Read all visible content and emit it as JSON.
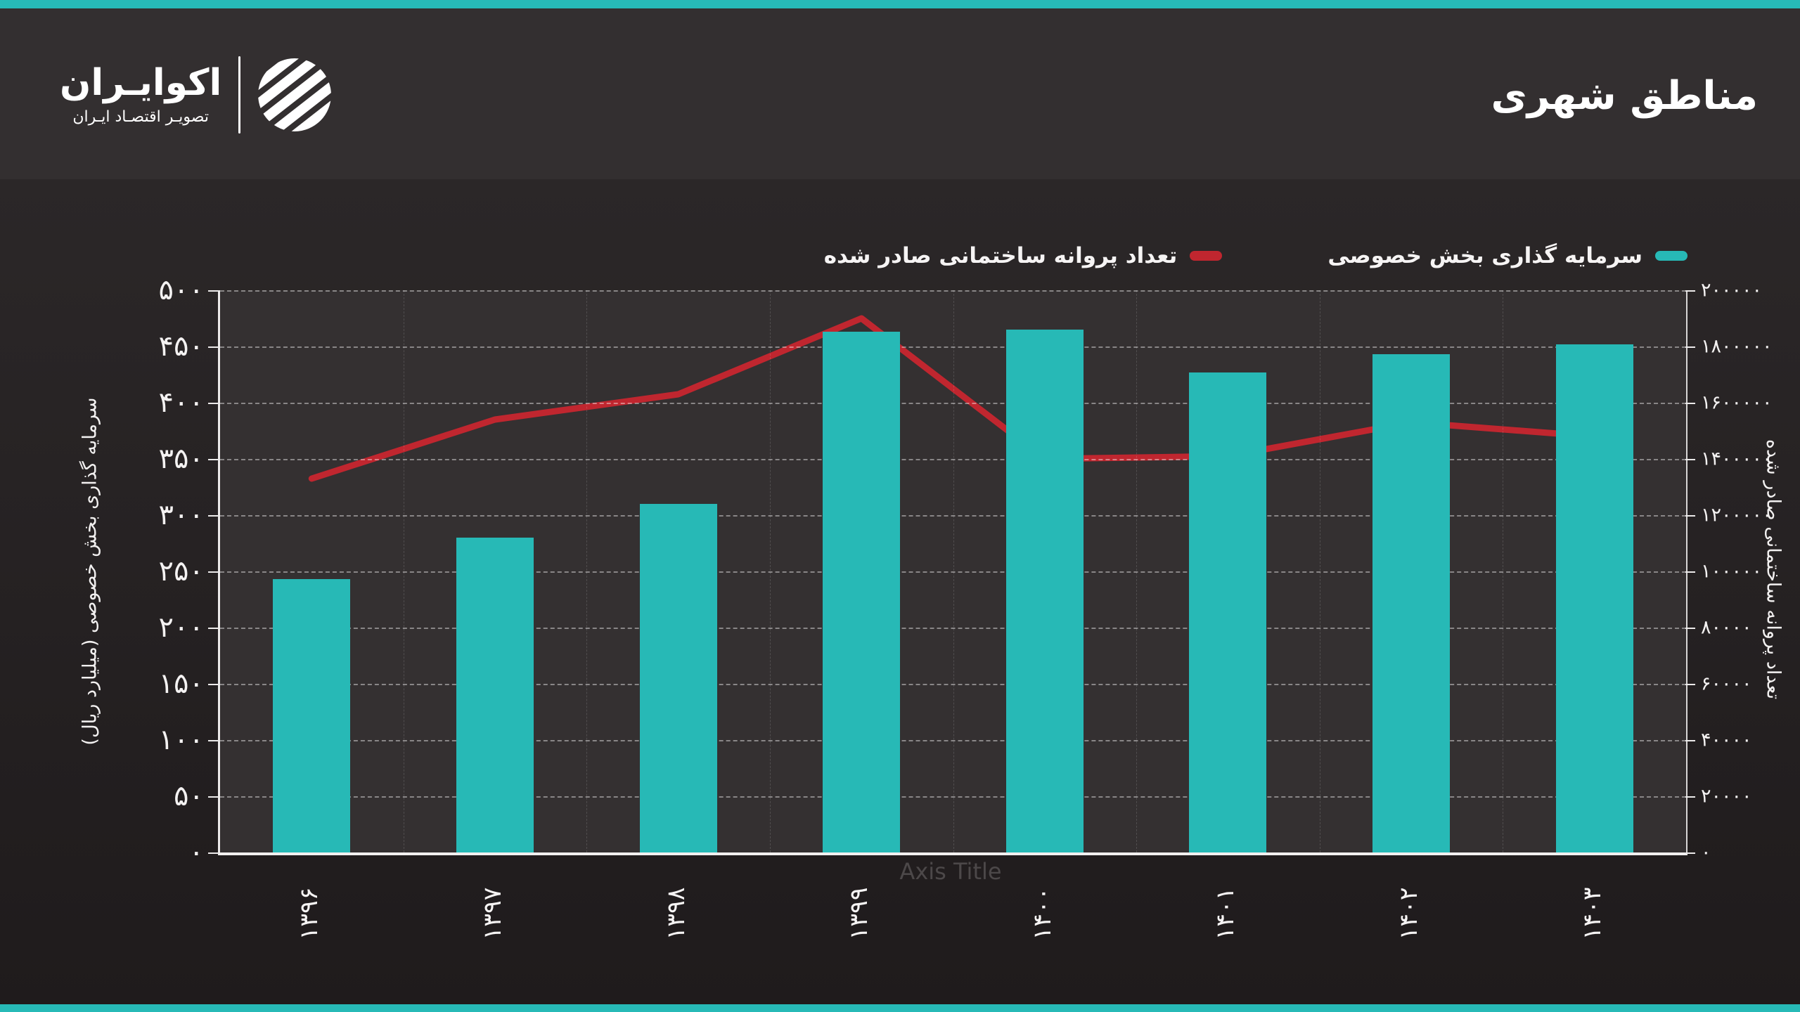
{
  "colors": {
    "teal": "#27b9b6",
    "red": "#c0262f",
    "header_bg": "#332f30",
    "plot_bg": "#343031"
  },
  "header": {
    "title": "مناطق شهری",
    "logo": {
      "wordmark": "اکوایـران",
      "tagline": "تصویـر اقتصـاد ایـران"
    }
  },
  "legend": {
    "items": [
      {
        "label": "تعداد پروانه ساختمانی صادر شده",
        "color": "#c0262f"
      },
      {
        "label": "سرمایه گذاری بخش خصوصی",
        "color": "#27b9b6"
      }
    ]
  },
  "chart_data": {
    "type": "bar",
    "subtype": "combo-bar-line-dual-axis",
    "categories": [
      "۱۳۹۶",
      "۱۳۹۷",
      "۱۳۹۸",
      "۱۳۹۹",
      "۱۴۰۰",
      "۱۴۰۱",
      "۱۴۰۲",
      "۱۴۰۳"
    ],
    "series": [
      {
        "name": "سرمایه گذاری بخش خصوصی",
        "type": "bar",
        "axis": "left",
        "color": "#27b9b6",
        "values": [
          243,
          280,
          310,
          463,
          465,
          427,
          443,
          452
        ]
      },
      {
        "name": "تعداد پروانه ساختمانی صادر شده",
        "type": "line",
        "axis": "right",
        "color": "#c0262f",
        "values": [
          1330000,
          1540000,
          1630000,
          1900000,
          1400000,
          1410000,
          1530000,
          1480000
        ]
      }
    ],
    "title": "مناطق شهری",
    "left_axis": {
      "label": "سرمایه گذاری بخش خصوصی (میلیارد ریال)",
      "range": [
        0,
        500
      ],
      "tick_labels_top_to_bottom": [
        "۵۰۰",
        "۴۵۰",
        "۴۰۰",
        "۳۵۰",
        "۳۰۰",
        "۲۵۰",
        "۲۰۰",
        "۱۵۰",
        "۱۰۰",
        "۵۰",
        "۰"
      ]
    },
    "right_axis": {
      "label": "تعداد پروانه ساختمانی صادر شده",
      "range": [
        0,
        2000000
      ],
      "tick_labels_top_to_bottom": [
        "۲۰۰۰۰۰",
        "۱۸۰۰۰۰۰",
        "۱۶۰۰۰۰۰",
        "۱۴۰۰۰۰۰",
        "۱۲۰۰۰۰۰",
        "۱۰۰۰۰۰",
        "۸۰۰۰۰",
        "۶۰۰۰۰",
        "۴۰۰۰۰",
        "۲۰۰۰۰",
        "۰"
      ]
    },
    "x_axis": {
      "label": "Axis Title"
    },
    "grid": "horizontal-dashed",
    "legend_position": "top-right"
  }
}
